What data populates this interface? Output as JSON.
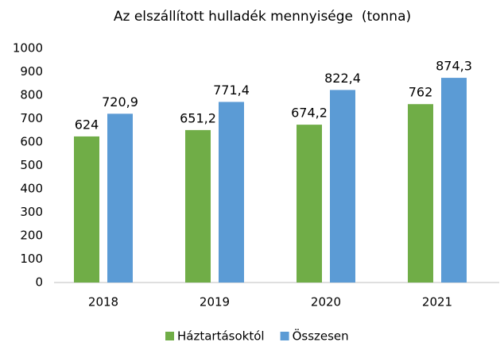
{
  "chart_data": {
    "type": "bar",
    "title": "Az elszállított hulladék mennyisége  (tonna)",
    "categories": [
      "2018",
      "2019",
      "2020",
      "2021"
    ],
    "series": [
      {
        "name": "Háztartásoktól",
        "color": "#70ad47",
        "values": [
          624,
          651.2,
          674.2,
          762
        ],
        "value_labels": [
          "624",
          "651,2",
          "674,2",
          "762"
        ]
      },
      {
        "name": "Összesen",
        "color": "#5b9bd5",
        "values": [
          720.9,
          771.4,
          822.4,
          874.3
        ],
        "value_labels": [
          "720,9",
          "771,4",
          "822,4",
          "874,3"
        ]
      }
    ],
    "ylim": [
      0,
      1000
    ],
    "yticks": [
      0,
      100,
      200,
      300,
      400,
      500,
      600,
      700,
      800,
      900,
      1000
    ],
    "grid": false,
    "legend": "bottom"
  }
}
